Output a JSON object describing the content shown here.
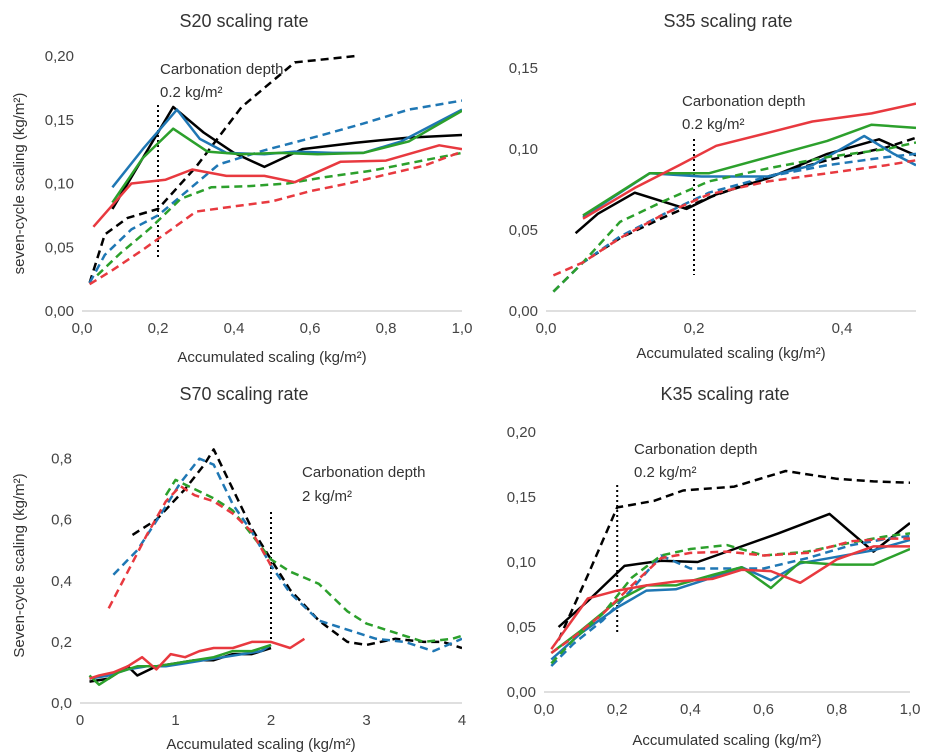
{
  "chart_data": [
    {
      "type": "line",
      "title": "S20 scaling rate",
      "xlabel": "Accumulated scaling (kg/m²)",
      "ylabel": "seven-cycle scaling (kg/m²)",
      "xlim": [
        0,
        1.0
      ],
      "ylim": [
        0,
        0.2
      ],
      "xticks": [
        "0,0",
        "0,2",
        "0,4",
        "0,6",
        "0,8",
        "1,0"
      ],
      "yticks": [
        "0,00",
        "0,05",
        "0,10",
        "0,15",
        "0,20"
      ],
      "annotation": [
        "Carbonation depth",
        "0.2 kg/m²"
      ],
      "marker_x": 0.2,
      "series": [
        {
          "color": "#000000",
          "dash": false,
          "x": [
            0.08,
            0.16,
            0.24,
            0.32,
            0.4,
            0.48,
            0.58,
            0.72,
            0.86,
            1.0
          ],
          "y": [
            0.08,
            0.12,
            0.16,
            0.14,
            0.124,
            0.113,
            0.127,
            0.132,
            0.136,
            0.138
          ]
        },
        {
          "color": "#000000",
          "dash": true,
          "x": [
            0.02,
            0.06,
            0.12,
            0.2,
            0.3,
            0.42,
            0.56,
            0.72
          ],
          "y": [
            0.022,
            0.06,
            0.073,
            0.08,
            0.113,
            0.16,
            0.195,
            0.2
          ]
        },
        {
          "color": "#1f77b4",
          "dash": false,
          "x": [
            0.08,
            0.16,
            0.25,
            0.31,
            0.38,
            0.48,
            0.56,
            0.66,
            0.74,
            0.84,
            1.0
          ],
          "y": [
            0.097,
            0.127,
            0.158,
            0.135,
            0.124,
            0.123,
            0.125,
            0.124,
            0.124,
            0.133,
            0.158
          ]
        },
        {
          "color": "#1f77b4",
          "dash": true,
          "x": [
            0.02,
            0.06,
            0.13,
            0.2,
            0.28,
            0.36,
            0.48,
            0.62,
            0.74,
            0.86,
            1.0
          ],
          "y": [
            0.022,
            0.044,
            0.064,
            0.075,
            0.095,
            0.115,
            0.126,
            0.137,
            0.147,
            0.158,
            0.165
          ]
        },
        {
          "color": "#2ca02c",
          "dash": false,
          "x": [
            0.08,
            0.16,
            0.24,
            0.33,
            0.42,
            0.52,
            0.62,
            0.74,
            0.86,
            1.0
          ],
          "y": [
            0.085,
            0.12,
            0.143,
            0.125,
            0.123,
            0.124,
            0.123,
            0.124,
            0.133,
            0.157
          ]
        },
        {
          "color": "#2ca02c",
          "dash": true,
          "x": [
            0.04,
            0.1,
            0.18,
            0.26,
            0.34,
            0.44,
            0.54,
            0.64,
            0.76,
            0.88,
            1.0
          ],
          "y": [
            0.028,
            0.045,
            0.065,
            0.088,
            0.097,
            0.098,
            0.1,
            0.105,
            0.11,
            0.117,
            0.124
          ]
        },
        {
          "color": "#e8393f",
          "dash": false,
          "x": [
            0.03,
            0.13,
            0.22,
            0.29,
            0.38,
            0.48,
            0.56,
            0.68,
            0.8,
            0.94,
            1.0
          ],
          "y": [
            0.066,
            0.1,
            0.103,
            0.111,
            0.106,
            0.106,
            0.101,
            0.117,
            0.118,
            0.13,
            0.127
          ]
        },
        {
          "color": "#e8393f",
          "dash": true,
          "x": [
            0.02,
            0.08,
            0.16,
            0.24,
            0.3,
            0.4,
            0.5,
            0.6,
            0.7,
            0.8,
            0.9,
            1.0
          ],
          "y": [
            0.021,
            0.032,
            0.048,
            0.065,
            0.078,
            0.082,
            0.086,
            0.094,
            0.1,
            0.107,
            0.114,
            0.125
          ]
        }
      ]
    },
    {
      "type": "line",
      "title": "S35 scaling rate",
      "xlabel": "Accumulated scaling (kg/m²)",
      "ylabel": "",
      "xlim": [
        0,
        0.5
      ],
      "ylim": [
        0,
        0.15
      ],
      "xticks": [
        "0,0",
        "0,2",
        "0,4"
      ],
      "yticks": [
        "0,00",
        "0,05",
        "0,10",
        "0,15"
      ],
      "annotation": [
        "Carbonation depth",
        "0.2 kg/m²"
      ],
      "marker_x": 0.2,
      "series": [
        {
          "color": "#000000",
          "dash": false,
          "x": [
            0.04,
            0.07,
            0.12,
            0.19,
            0.23,
            0.3,
            0.38,
            0.45,
            0.5
          ],
          "y": [
            0.048,
            0.06,
            0.073,
            0.063,
            0.072,
            0.082,
            0.097,
            0.106,
            0.096
          ]
        },
        {
          "color": "#000000",
          "dash": true,
          "x": [
            0.01,
            0.05,
            0.1,
            0.16,
            0.22,
            0.3,
            0.38,
            0.46,
            0.5
          ],
          "y": [
            0.012,
            0.03,
            0.045,
            0.058,
            0.07,
            0.083,
            0.093,
            0.101,
            0.107
          ]
        },
        {
          "color": "#1f77b4",
          "dash": false,
          "x": [
            0.05,
            0.14,
            0.21,
            0.3,
            0.36,
            0.43,
            0.47,
            0.5
          ],
          "y": [
            0.058,
            0.085,
            0.083,
            0.083,
            0.09,
            0.108,
            0.097,
            0.09
          ]
        },
        {
          "color": "#1f77b4",
          "dash": true,
          "x": [
            0.01,
            0.05,
            0.1,
            0.16,
            0.22,
            0.3,
            0.38,
            0.46,
            0.5
          ],
          "y": [
            0.012,
            0.03,
            0.046,
            0.06,
            0.073,
            0.083,
            0.09,
            0.095,
            0.097
          ]
        },
        {
          "color": "#2ca02c",
          "dash": false,
          "x": [
            0.05,
            0.14,
            0.22,
            0.3,
            0.38,
            0.44,
            0.5
          ],
          "y": [
            0.059,
            0.085,
            0.085,
            0.095,
            0.105,
            0.115,
            0.113
          ]
        },
        {
          "color": "#2ca02c",
          "dash": true,
          "x": [
            0.01,
            0.05,
            0.1,
            0.16,
            0.22,
            0.3,
            0.38,
            0.46,
            0.5
          ],
          "y": [
            0.012,
            0.03,
            0.055,
            0.068,
            0.08,
            0.088,
            0.095,
            0.1,
            0.104
          ]
        },
        {
          "color": "#e8393f",
          "dash": false,
          "x": [
            0.05,
            0.12,
            0.18,
            0.23,
            0.3,
            0.36,
            0.44,
            0.5
          ],
          "y": [
            0.057,
            0.076,
            0.09,
            0.102,
            0.11,
            0.117,
            0.122,
            0.128
          ]
        },
        {
          "color": "#e8393f",
          "dash": true,
          "x": [
            0.01,
            0.05,
            0.1,
            0.16,
            0.22,
            0.3,
            0.38,
            0.46,
            0.5
          ],
          "y": [
            0.022,
            0.03,
            0.045,
            0.06,
            0.072,
            0.08,
            0.085,
            0.09,
            0.093
          ]
        }
      ]
    },
    {
      "type": "line",
      "title": "S70 scaling rate",
      "xlabel": "Accumulated scaling (kg/m²)",
      "ylabel": "Seven-cycle scaling (kg/m²)",
      "xlim": [
        0,
        4
      ],
      "ylim": [
        0,
        0.9
      ],
      "xticks": [
        "0",
        "1",
        "2",
        "3",
        "4"
      ],
      "yticks": [
        "0,0",
        "0,2",
        "0,4",
        "0,6",
        "0,8"
      ],
      "annotation": [
        "Carbonation depth",
        "2 kg/m²"
      ],
      "marker_x": 2,
      "series": [
        {
          "color": "#000000",
          "dash": false,
          "x": [
            0.1,
            0.3,
            0.5,
            0.6,
            0.8,
            1.0,
            1.2,
            1.4,
            1.6,
            1.8,
            2.0
          ],
          "y": [
            0.07,
            0.08,
            0.12,
            0.09,
            0.12,
            0.13,
            0.14,
            0.14,
            0.16,
            0.16,
            0.18
          ]
        },
        {
          "color": "#000000",
          "dash": true,
          "x": [
            0.55,
            0.8,
            1.1,
            1.3,
            1.4,
            1.6,
            1.8,
            2.0,
            2.2,
            2.5,
            2.8,
            3.0,
            3.3,
            3.6,
            3.8,
            4.0
          ],
          "y": [
            0.55,
            0.6,
            0.7,
            0.78,
            0.83,
            0.7,
            0.57,
            0.47,
            0.37,
            0.27,
            0.2,
            0.19,
            0.21,
            0.2,
            0.2,
            0.18
          ]
        },
        {
          "color": "#1f77b4",
          "dash": false,
          "x": [
            0.1,
            0.3,
            0.5,
            0.7,
            0.9,
            1.1,
            1.3,
            1.5,
            1.7,
            1.9,
            2.0
          ],
          "y": [
            0.08,
            0.09,
            0.11,
            0.12,
            0.12,
            0.13,
            0.14,
            0.15,
            0.16,
            0.17,
            0.19
          ]
        },
        {
          "color": "#1f77b4",
          "dash": true,
          "x": [
            0.35,
            0.6,
            0.85,
            1.05,
            1.25,
            1.4,
            1.6,
            1.8,
            2.0,
            2.2,
            2.5,
            2.8,
            3.1,
            3.4,
            3.7,
            4.0
          ],
          "y": [
            0.42,
            0.5,
            0.62,
            0.72,
            0.8,
            0.78,
            0.65,
            0.56,
            0.45,
            0.36,
            0.27,
            0.24,
            0.21,
            0.2,
            0.17,
            0.21
          ]
        },
        {
          "color": "#2ca02c",
          "dash": false,
          "x": [
            0.1,
            0.2,
            0.4,
            0.6,
            0.8,
            1.0,
            1.2,
            1.4,
            1.6,
            1.8,
            2.0
          ],
          "y": [
            0.09,
            0.06,
            0.1,
            0.12,
            0.12,
            0.13,
            0.14,
            0.15,
            0.17,
            0.17,
            0.19
          ]
        },
        {
          "color": "#2ca02c",
          "dash": true,
          "x": [
            0.9,
            1.0,
            1.2,
            1.4,
            1.6,
            1.8,
            2.0,
            2.2,
            2.5,
            2.8,
            3.0,
            3.3,
            3.6,
            3.9,
            4.0
          ],
          "y": [
            0.68,
            0.73,
            0.7,
            0.67,
            0.63,
            0.55,
            0.47,
            0.43,
            0.39,
            0.3,
            0.26,
            0.23,
            0.2,
            0.21,
            0.22
          ]
        },
        {
          "color": "#e8393f",
          "dash": false,
          "x": [
            0.1,
            0.2,
            0.35,
            0.5,
            0.65,
            0.8,
            0.95,
            1.1,
            1.25,
            1.4,
            1.6,
            1.8,
            2.0,
            2.2,
            2.35
          ],
          "y": [
            0.08,
            0.09,
            0.1,
            0.12,
            0.15,
            0.11,
            0.16,
            0.15,
            0.17,
            0.18,
            0.18,
            0.2,
            0.2,
            0.18,
            0.21
          ]
        },
        {
          "color": "#e8393f",
          "dash": true,
          "x": [
            0.3,
            0.5,
            0.7,
            0.9,
            1.05,
            1.2,
            1.4,
            1.6,
            1.8,
            2.0
          ],
          "y": [
            0.31,
            0.43,
            0.55,
            0.66,
            0.71,
            0.68,
            0.66,
            0.62,
            0.56,
            0.45
          ]
        }
      ]
    },
    {
      "type": "line",
      "title": "K35 scaling rate",
      "xlabel": "Accumulated scaling (kg/m²)",
      "ylabel": "",
      "xlim": [
        0,
        1.0
      ],
      "ylim": [
        0,
        0.2
      ],
      "xticks": [
        "0,0",
        "0,2",
        "0,4",
        "0,6",
        "0,8",
        "1,0"
      ],
      "yticks": [
        "0,00",
        "0,05",
        "0,10",
        "0,15",
        "0,20"
      ],
      "annotation": [
        "Carbonation depth",
        "0.2 kg/m²"
      ],
      "marker_x": 0.2,
      "series": [
        {
          "color": "#000000",
          "dash": false,
          "x": [
            0.04,
            0.12,
            0.22,
            0.32,
            0.42,
            0.52,
            0.64,
            0.78,
            0.9,
            1.0
          ],
          "y": [
            0.05,
            0.07,
            0.097,
            0.101,
            0.1,
            0.11,
            0.122,
            0.137,
            0.108,
            0.13
          ]
        },
        {
          "color": "#000000",
          "dash": true,
          "x": [
            0.04,
            0.12,
            0.2,
            0.3,
            0.38,
            0.52,
            0.66,
            0.8,
            0.9,
            1.0
          ],
          "y": [
            0.04,
            0.09,
            0.142,
            0.147,
            0.155,
            0.158,
            0.17,
            0.164,
            0.162,
            0.161
          ]
        },
        {
          "color": "#1f77b4",
          "dash": false,
          "x": [
            0.02,
            0.1,
            0.2,
            0.28,
            0.36,
            0.46,
            0.54,
            0.62,
            0.7,
            0.8,
            0.9,
            1.0
          ],
          "y": [
            0.025,
            0.045,
            0.065,
            0.078,
            0.079,
            0.088,
            0.096,
            0.086,
            0.099,
            0.104,
            0.109,
            0.117
          ]
        },
        {
          "color": "#1f77b4",
          "dash": true,
          "x": [
            0.02,
            0.08,
            0.16,
            0.24,
            0.32,
            0.4,
            0.5,
            0.6,
            0.72,
            0.84,
            0.94,
            1.0
          ],
          "y": [
            0.02,
            0.037,
            0.055,
            0.079,
            0.105,
            0.095,
            0.095,
            0.095,
            0.103,
            0.113,
            0.118,
            0.12
          ]
        },
        {
          "color": "#2ca02c",
          "dash": false,
          "x": [
            0.02,
            0.1,
            0.2,
            0.28,
            0.36,
            0.46,
            0.54,
            0.62,
            0.7,
            0.8,
            0.9,
            1.0
          ],
          "y": [
            0.03,
            0.047,
            0.07,
            0.082,
            0.082,
            0.09,
            0.096,
            0.08,
            0.1,
            0.098,
            0.098,
            0.11
          ]
        },
        {
          "color": "#2ca02c",
          "dash": true,
          "x": [
            0.02,
            0.08,
            0.16,
            0.24,
            0.32,
            0.4,
            0.5,
            0.6,
            0.72,
            0.84,
            0.94,
            1.0
          ],
          "y": [
            0.022,
            0.04,
            0.06,
            0.088,
            0.105,
            0.11,
            0.113,
            0.105,
            0.108,
            0.115,
            0.12,
            0.122
          ]
        },
        {
          "color": "#e8393f",
          "dash": false,
          "x": [
            0.02,
            0.12,
            0.2,
            0.28,
            0.36,
            0.46,
            0.54,
            0.62,
            0.7,
            0.8,
            0.9,
            1.0
          ],
          "y": [
            0.033,
            0.072,
            0.078,
            0.082,
            0.085,
            0.087,
            0.094,
            0.093,
            0.084,
            0.102,
            0.112,
            0.112
          ]
        },
        {
          "color": "#e8393f",
          "dash": true,
          "x": [
            0.02,
            0.08,
            0.16,
            0.24,
            0.32,
            0.4,
            0.5,
            0.6,
            0.72,
            0.84,
            0.94,
            1.0
          ],
          "y": [
            0.03,
            0.042,
            0.06,
            0.082,
            0.103,
            0.107,
            0.108,
            0.105,
            0.107,
            0.116,
            0.118,
            0.118
          ]
        }
      ]
    }
  ]
}
